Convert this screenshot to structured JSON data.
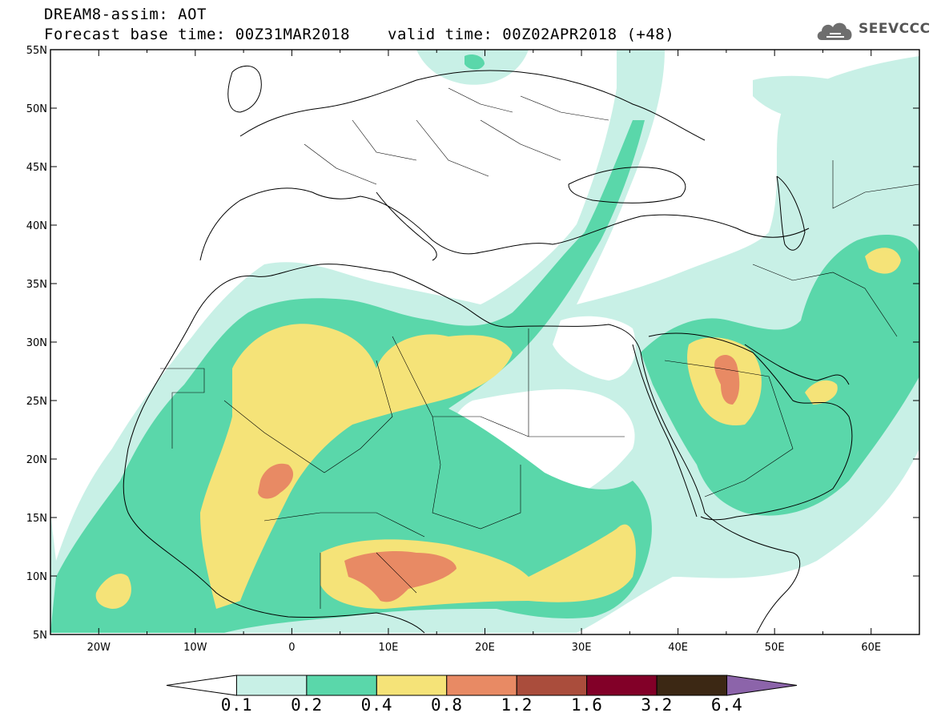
{
  "title": {
    "line1": "DREAM8-assim: AOT",
    "base_time": "Forecast base time: 00Z31MAR2018",
    "valid_time": "valid time: 00Z02APR2018 (+48)"
  },
  "logo": {
    "text": "SEEVCCC",
    "icon": "cloud-icon"
  },
  "map": {
    "lon_ticks": [
      "20W",
      "10W",
      "0",
      "10E",
      "20E",
      "30E",
      "40E",
      "50E",
      "60E"
    ],
    "lat_ticks": [
      "55N",
      "50N",
      "45N",
      "40N",
      "35N",
      "30N",
      "25N",
      "20N",
      "15N",
      "10N",
      "5N"
    ],
    "lon_range": [
      -25,
      65
    ],
    "lat_range": [
      5,
      55
    ]
  },
  "colorbar": {
    "labels": [
      "0.1",
      "0.2",
      "0.4",
      "0.8",
      "1.2",
      "1.6",
      "3.2",
      "6.4"
    ],
    "colors": [
      "#ffffff",
      "#c8f0e6",
      "#5ad7aa",
      "#f5e378",
      "#e88a64",
      "#aa4d3c",
      "#820028",
      "#3c2814",
      "#8c64aa"
    ]
  }
}
